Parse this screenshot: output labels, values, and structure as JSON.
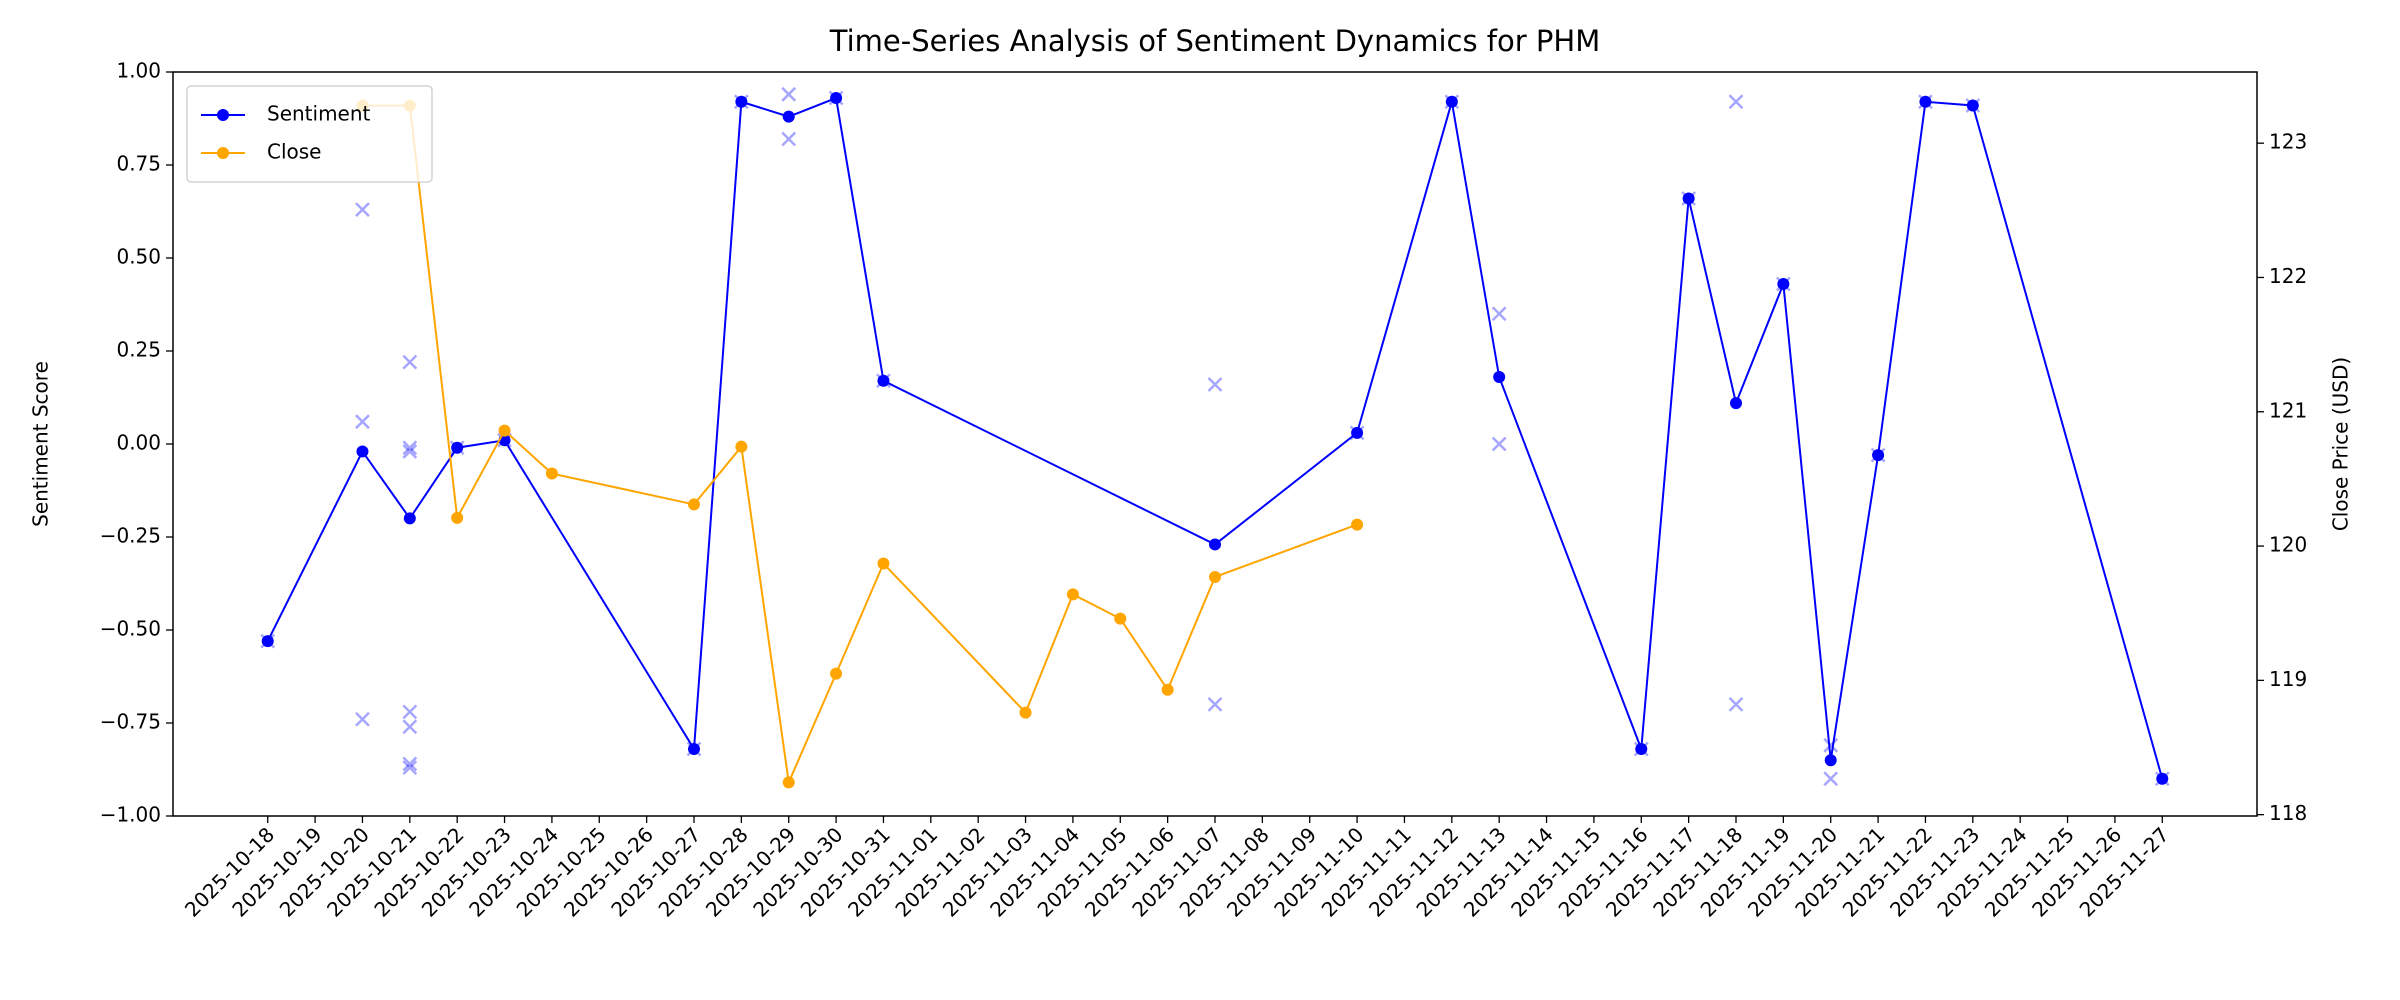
{
  "chart_data": {
    "type": "line",
    "title": "Time-Series Analysis of Sentiment Dynamics for PHM",
    "ylabel": "Sentiment Score",
    "y2label": "Close Price (USD)",
    "xlim": [
      "2025-10-16",
      "2025-11-29"
    ],
    "xticks": [
      "2025-10-18",
      "2025-10-19",
      "2025-10-20",
      "2025-10-21",
      "2025-10-22",
      "2025-10-23",
      "2025-10-24",
      "2025-10-25",
      "2025-10-26",
      "2025-10-27",
      "2025-10-28",
      "2025-10-29",
      "2025-10-30",
      "2025-10-31",
      "2025-11-01",
      "2025-11-02",
      "2025-11-03",
      "2025-11-04",
      "2025-11-05",
      "2025-11-06",
      "2025-11-07",
      "2025-11-08",
      "2025-11-09",
      "2025-11-10",
      "2025-11-11",
      "2025-11-12",
      "2025-11-13",
      "2025-11-14",
      "2025-11-15",
      "2025-11-16",
      "2025-11-17",
      "2025-11-18",
      "2025-11-19",
      "2025-11-20",
      "2025-11-21",
      "2025-11-22",
      "2025-11-23",
      "2025-11-24",
      "2025-11-25",
      "2025-11-26",
      "2025-11-27"
    ],
    "ylim": [
      -1,
      1
    ],
    "yticks": [
      {
        "value": -1,
        "label": "−1.00"
      },
      {
        "value": -0.75,
        "label": "−0.75"
      },
      {
        "value": -0.5,
        "label": "−0.50"
      },
      {
        "value": -0.25,
        "label": "−0.25"
      },
      {
        "value": 0,
        "label": "0.00"
      },
      {
        "value": 0.25,
        "label": "0.25"
      },
      {
        "value": 0.5,
        "label": "0.50"
      },
      {
        "value": 0.75,
        "label": "0.75"
      },
      {
        "value": 1,
        "label": "1.00"
      }
    ],
    "y2lim": [
      117.99,
      123.53
    ],
    "y2ticks": [
      118,
      119,
      120,
      121,
      122,
      123
    ],
    "legend": "upper left",
    "series": [
      {
        "color": "#0000ff",
        "alpha": 0.35,
        "marker": "x",
        "line": false,
        "x": [
          "2025-10-18",
          "2025-10-20",
          "2025-10-20",
          "2025-10-20",
          "2025-10-21",
          "2025-10-21",
          "2025-10-21",
          "2025-10-21",
          "2025-10-21",
          "2025-10-21",
          "2025-10-21",
          "2025-10-22",
          "2025-10-23",
          "2025-10-27",
          "2025-10-28",
          "2025-10-29",
          "2025-10-29",
          "2025-10-30",
          "2025-10-31",
          "2025-11-07",
          "2025-11-07",
          "2025-11-10",
          "2025-11-12",
          "2025-11-13",
          "2025-11-13",
          "2025-11-16",
          "2025-11-17",
          "2025-11-18",
          "2025-11-18",
          "2025-11-19",
          "2025-11-20",
          "2025-11-20",
          "2025-11-21",
          "2025-11-22",
          "2025-11-23",
          "2025-11-27"
        ],
        "values": [
          -0.53,
          0.63,
          0.06,
          -0.74,
          0.22,
          -0.01,
          -0.02,
          -0.72,
          -0.76,
          -0.86,
          -0.87,
          -0.01,
          0.01,
          -0.82,
          0.92,
          0.94,
          0.82,
          0.93,
          0.17,
          0.16,
          -0.7,
          0.03,
          0.92,
          0.35,
          0.0,
          -0.82,
          0.66,
          0.92,
          -0.7,
          0.43,
          -0.81,
          -0.9,
          -0.03,
          0.92,
          0.91,
          -0.9
        ]
      },
      {
        "name": "Sentiment",
        "color": "#0000ff",
        "alpha": 1,
        "marker": "o",
        "line": true,
        "x": [
          "2025-10-18",
          "2025-10-20",
          "2025-10-21",
          "2025-10-22",
          "2025-10-23",
          "2025-10-27",
          "2025-10-28",
          "2025-10-29",
          "2025-10-30",
          "2025-10-31",
          "2025-11-07",
          "2025-11-10",
          "2025-11-12",
          "2025-11-13",
          "2025-11-16",
          "2025-11-17",
          "2025-11-18",
          "2025-11-19",
          "2025-11-20",
          "2025-11-21",
          "2025-11-22",
          "2025-11-23",
          "2025-11-27"
        ],
        "values": [
          -0.53,
          -0.02,
          -0.2,
          -0.01,
          0.01,
          -0.82,
          0.92,
          0.88,
          0.93,
          0.17,
          -0.27,
          0.03,
          0.92,
          0.18,
          -0.82,
          0.66,
          0.11,
          0.43,
          -0.85,
          -0.03,
          0.92,
          0.91,
          -0.9
        ]
      },
      {
        "name": "Close",
        "color": "#ffa500",
        "alpha": 1,
        "marker": "o",
        "line": true,
        "axis": "y2",
        "x": [
          "2025-10-20",
          "2025-10-21",
          "2025-10-22",
          "2025-10-23",
          "2025-10-24",
          "2025-10-27",
          "2025-10-28",
          "2025-10-29",
          "2025-10-30",
          "2025-10-31",
          "2025-11-03",
          "2025-11-04",
          "2025-11-05",
          "2025-11-06",
          "2025-11-07",
          "2025-11-10"
        ],
        "values": [
          123.28,
          123.28,
          120.21,
          120.86,
          120.54,
          120.31,
          120.74,
          118.24,
          119.05,
          119.87,
          118.76,
          119.64,
          119.46,
          118.93,
          119.77,
          120.16
        ]
      }
    ]
  }
}
